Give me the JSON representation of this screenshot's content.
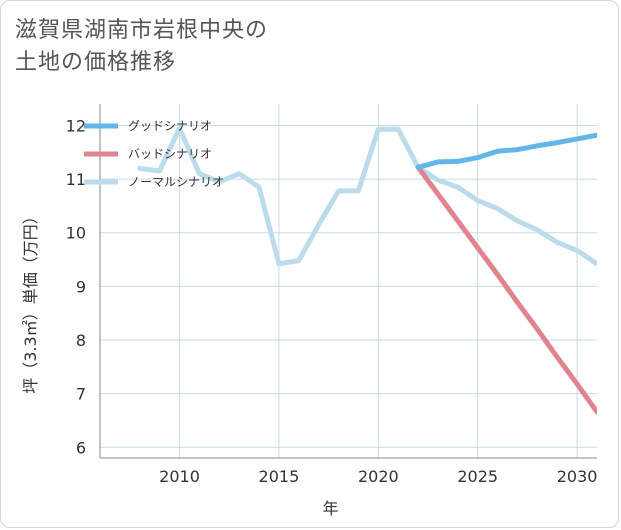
{
  "title_lines": [
    "滋賀県湖南市岩根中央の",
    "土地の価格推移"
  ],
  "colors": {
    "good": "#64b5ea",
    "bad": "#e0848f",
    "normal": "#bcdcec",
    "grid": "#c9dbe8",
    "frame": "#8a8a8a"
  },
  "chart_data": {
    "type": "line",
    "title": "滋賀県湖南市岩根中央の土地の価格推移",
    "xlabel": "年",
    "ylabel": "坪（3.3㎡）単価（万円）",
    "xlim": [
      2006,
      2031
    ],
    "ylim": [
      5.8,
      12.4
    ],
    "xticks": [
      2010,
      2015,
      2020,
      2025,
      2030
    ],
    "yticks": [
      6,
      7,
      8,
      9,
      10,
      11,
      12
    ],
    "legend_position": "top-left",
    "series": [
      {
        "name": "グッドシナリオ",
        "color": "#64b5ea",
        "x": [
          2022,
          2023,
          2024,
          2025,
          2026,
          2027,
          2028,
          2029,
          2030,
          2031
        ],
        "values": [
          11.22,
          11.32,
          11.33,
          11.4,
          11.52,
          11.55,
          11.62,
          11.68,
          11.75,
          11.82
        ]
      },
      {
        "name": "バッドシナリオ",
        "color": "#e0848f",
        "x": [
          2022,
          2023,
          2024,
          2025,
          2026,
          2027,
          2028,
          2029,
          2030,
          2031
        ],
        "values": [
          11.22,
          10.72,
          10.22,
          9.72,
          9.22,
          8.7,
          8.2,
          7.68,
          7.18,
          6.66
        ]
      },
      {
        "name": "ノーマルシナリオ",
        "color": "#bcdcec",
        "x": [
          2008,
          2009,
          2010,
          2011,
          2012,
          2013,
          2014,
          2015,
          2016,
          2017,
          2018,
          2019,
          2020,
          2021,
          2022,
          2023,
          2024,
          2025,
          2026,
          2027,
          2028,
          2029,
          2030,
          2031
        ],
        "values": [
          11.2,
          11.15,
          11.95,
          11.1,
          10.95,
          11.1,
          10.85,
          9.42,
          9.48,
          10.15,
          10.78,
          10.78,
          11.93,
          11.93,
          11.22,
          10.98,
          10.85,
          10.6,
          10.45,
          10.22,
          10.05,
          9.82,
          9.67,
          9.42
        ]
      }
    ]
  }
}
